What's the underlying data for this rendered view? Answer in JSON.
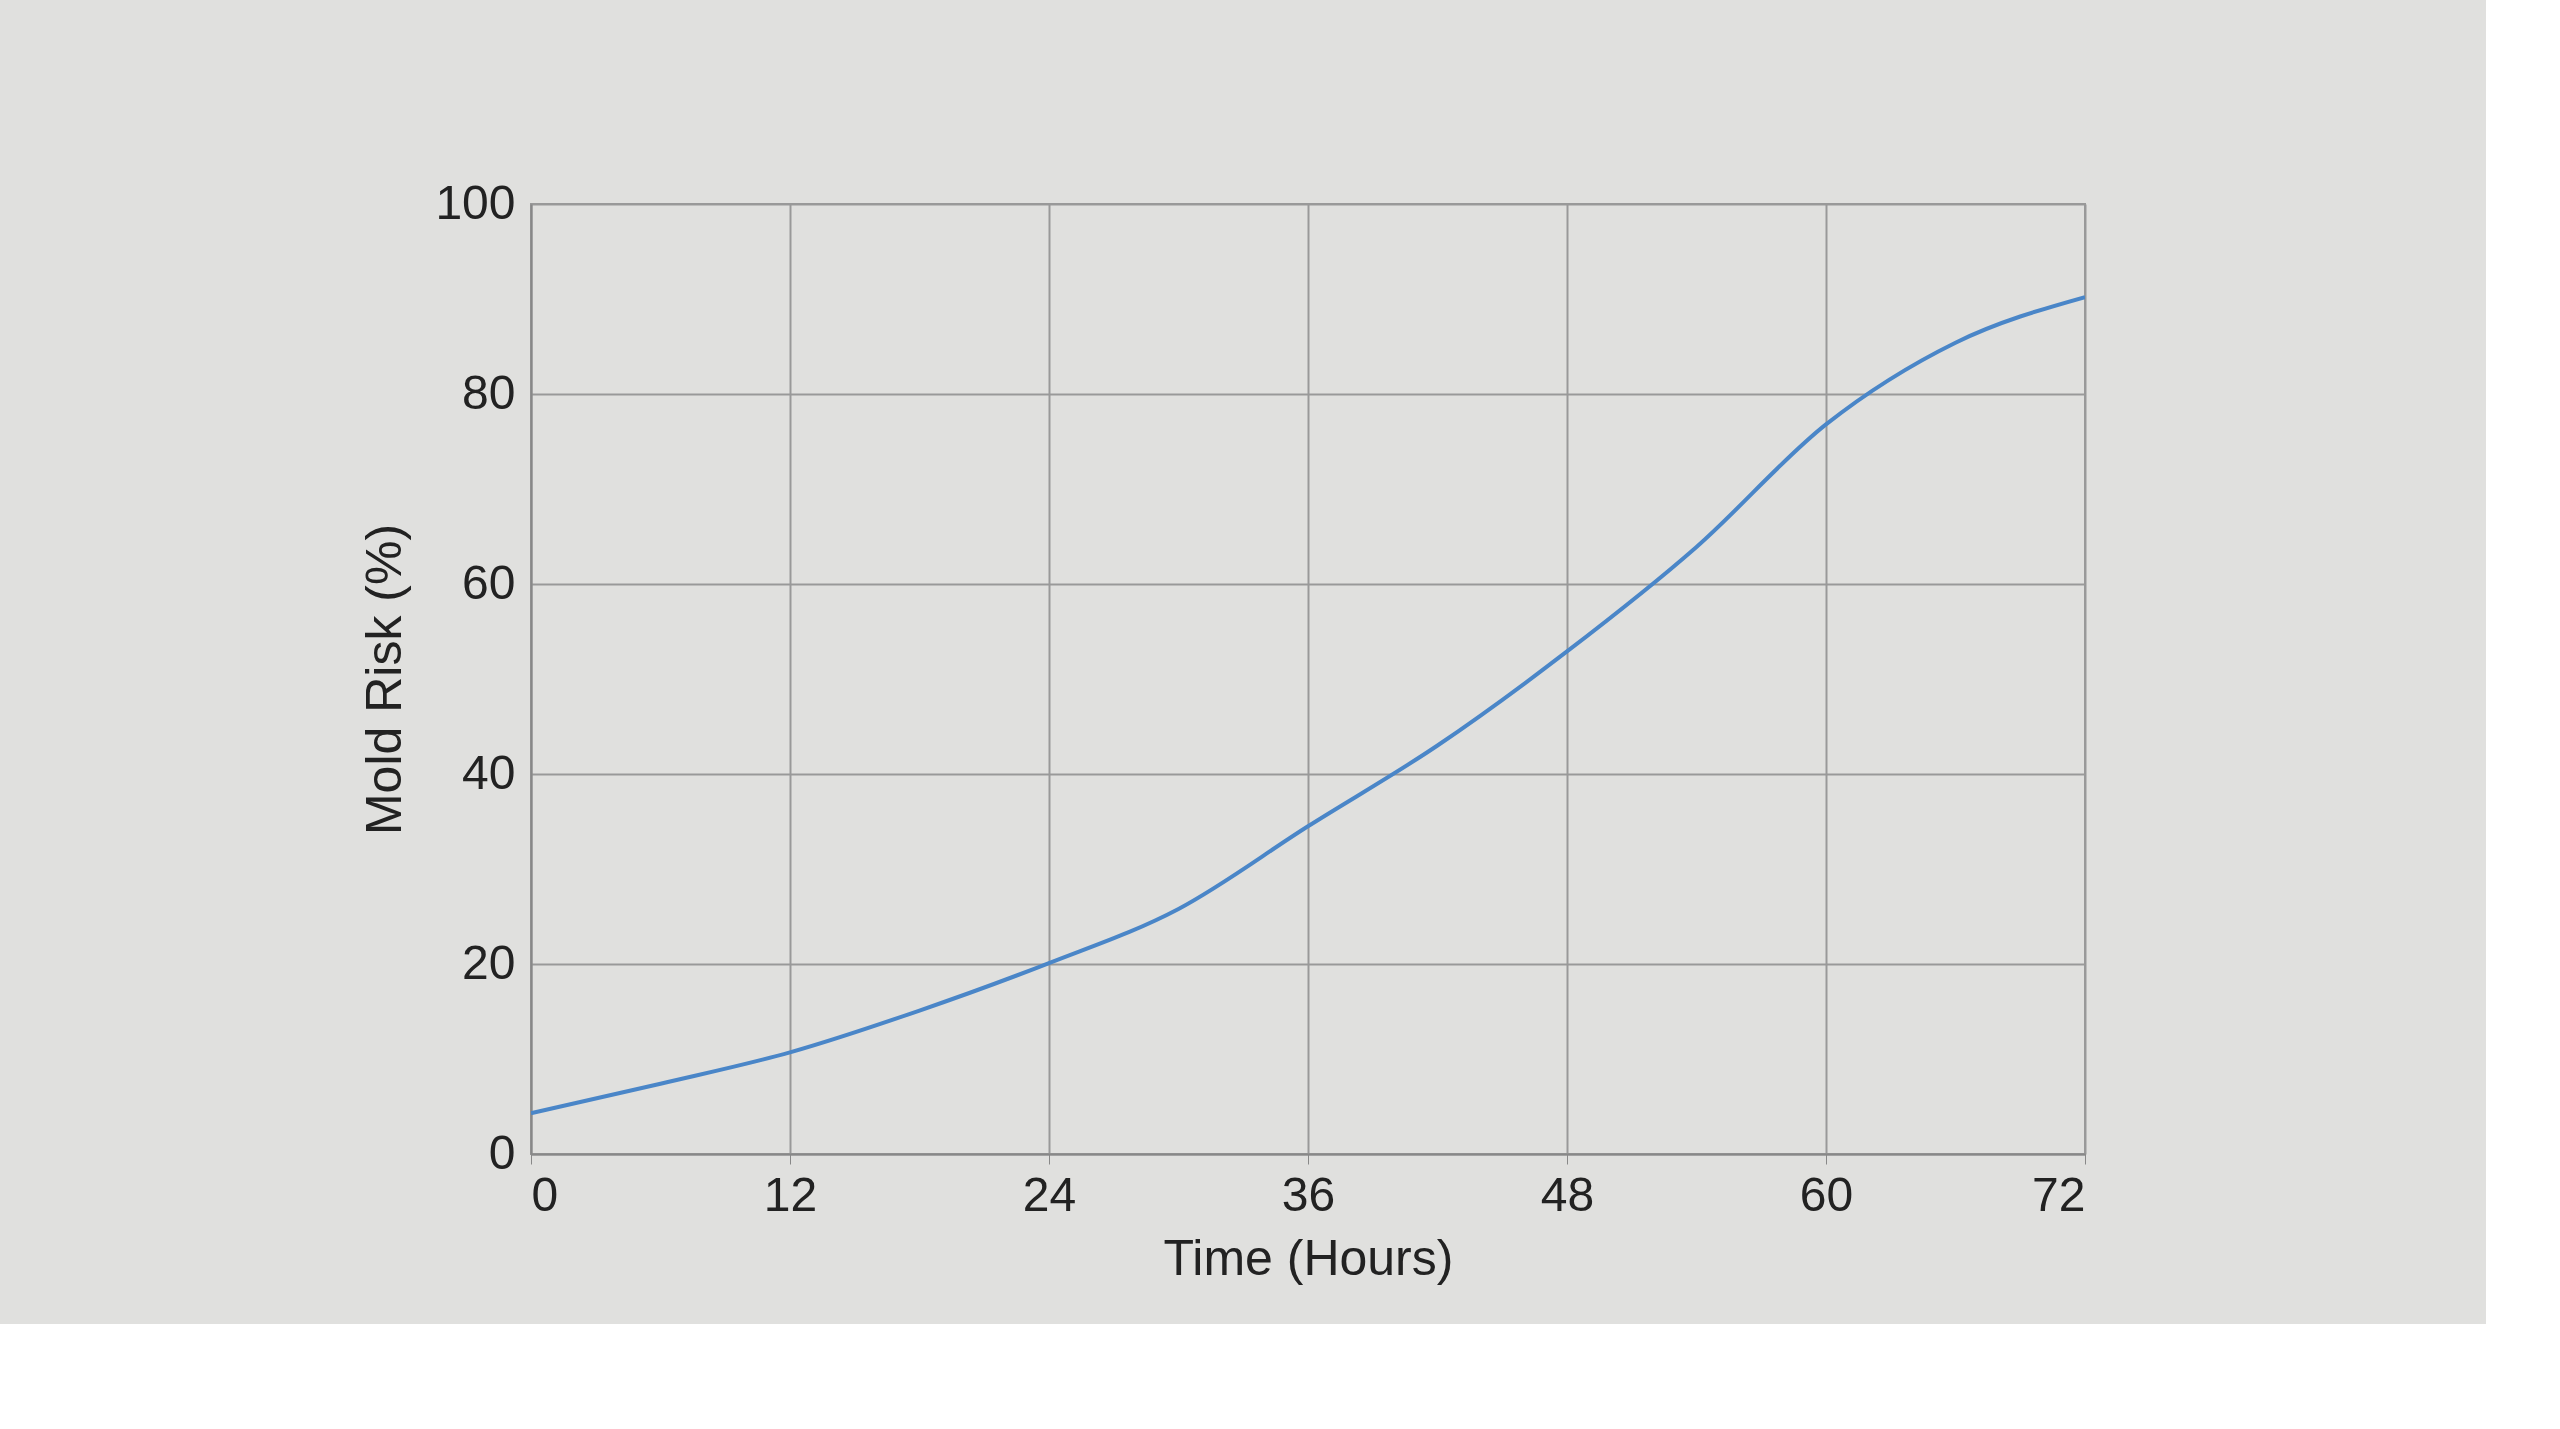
{
  "chart_data": {
    "type": "line",
    "xlabel": "Time (Hours)",
    "ylabel": "Mold Risk (%)",
    "x": [
      0,
      6,
      12,
      18,
      24,
      30,
      36,
      42,
      48,
      54,
      60,
      66,
      72
    ],
    "series": [
      {
        "color": "#4a86c8",
        "values": [
          4.3,
          7.4,
          10.7,
          15.1,
          20.1,
          25.8,
          34.5,
          43,
          52.9,
          63.9,
          76.8,
          85.4,
          90.2
        ]
      }
    ],
    "xlim": [
      0,
      72
    ],
    "ylim": [
      0,
      100
    ],
    "xticks": [
      0,
      12,
      24,
      36,
      48,
      60,
      72
    ],
    "yticks": [
      0,
      20,
      40,
      60,
      80,
      100
    ],
    "grid": true
  }
}
